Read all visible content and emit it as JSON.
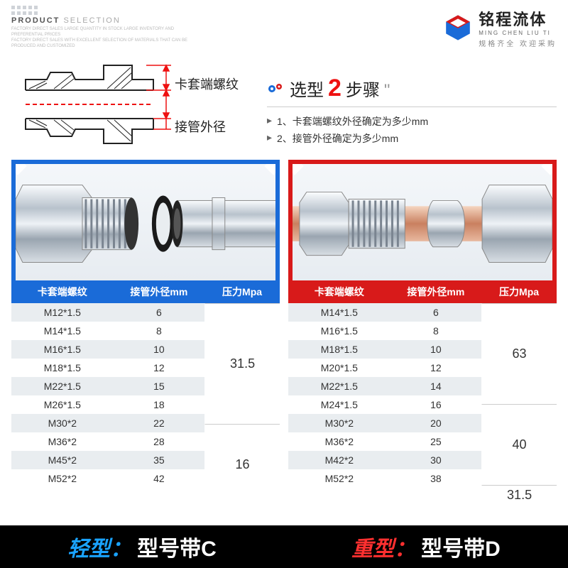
{
  "header": {
    "product": "PRODUCT",
    "selection": "SELECTION",
    "fine1": "FACTORY DIRECT SALES LARGE QUANTITY IN STOCK LARGE INVENTORY AND PREFERENTIAL PRICES",
    "fine2": "FACTORY DIRECT SALES WITH EXCELLENT SELECTION OF MATERIALS THAT CAN BE PRODUCED AND CUSTOMIZED"
  },
  "brand": {
    "cn": "铭程流体",
    "en": "MING CHEN LIU TI",
    "tag": "规格齐全 欢迎采购"
  },
  "diagram": {
    "label1": "卡套端螺纹",
    "label2": "接管外径"
  },
  "steps": {
    "title_pre": "选型",
    "title_num": "2",
    "title_post": "步骤",
    "s1": "1、卡套端螺纹外径确定为多少mm",
    "s2": "2、接管外径确定为多少mm"
  },
  "tables": {
    "headers": {
      "c1": "卡套端螺纹",
      "c2": "接管外径mm",
      "c3": "压力Mpa"
    },
    "light": {
      "color": "#1a6bd8",
      "rows": [
        {
          "thread": "M12*1.5",
          "od": "6"
        },
        {
          "thread": "M14*1.5",
          "od": "8"
        },
        {
          "thread": "M16*1.5",
          "od": "10"
        },
        {
          "thread": "M18*1.5",
          "od": "12"
        },
        {
          "thread": "M22*1.5",
          "od": "15"
        },
        {
          "thread": "M26*1.5",
          "od": "18"
        },
        {
          "thread": "M30*2",
          "od": "22"
        },
        {
          "thread": "M36*2",
          "od": "28"
        },
        {
          "thread": "M45*2",
          "od": "35"
        },
        {
          "thread": "M52*2",
          "od": "42"
        }
      ],
      "pressure_groups": [
        {
          "value": "31.5",
          "span": 6
        },
        {
          "value": "16",
          "span": 4
        }
      ]
    },
    "heavy": {
      "color": "#d81a1a",
      "rows": [
        {
          "thread": "M14*1.5",
          "od": "6"
        },
        {
          "thread": "M16*1.5",
          "od": "8"
        },
        {
          "thread": "M18*1.5",
          "od": "10"
        },
        {
          "thread": "M20*1.5",
          "od": "12"
        },
        {
          "thread": "M22*1.5",
          "od": "14"
        },
        {
          "thread": "M24*1.5",
          "od": "16"
        },
        {
          "thread": "M30*2",
          "od": "20"
        },
        {
          "thread": "M36*2",
          "od": "25"
        },
        {
          "thread": "M42*2",
          "od": "30"
        },
        {
          "thread": "M52*2",
          "od": "38"
        }
      ],
      "pressure_groups": [
        {
          "value": "63",
          "span": 5
        },
        {
          "value": "40",
          "span": 4
        },
        {
          "value": "31.5",
          "span": 1
        }
      ]
    }
  },
  "footer": {
    "light_label": "轻型：",
    "light_text": "型号带C",
    "heavy_label": "重型：",
    "heavy_text": "型号带D"
  }
}
